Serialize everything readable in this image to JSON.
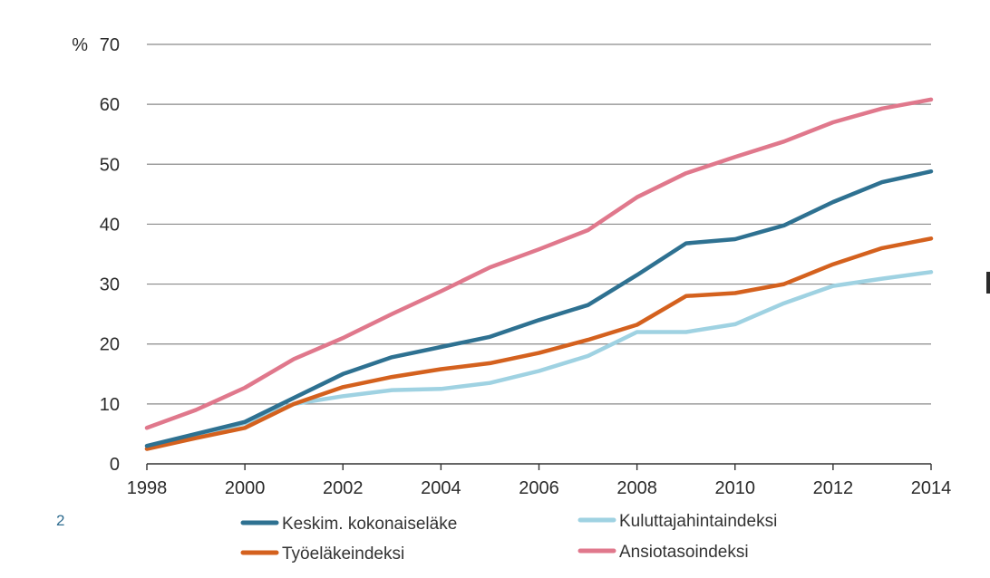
{
  "page_number": "2",
  "colors": {
    "Keskim. kokonaiseläke": "#2e7191",
    "Kuluttajahintaindeksi": "#9fd2e2",
    "Työeläkeindeksi": "#d4611e",
    "Ansiotasoindeksi": "#e0788c"
  },
  "chart_data": {
    "type": "line",
    "title": "",
    "xlabel": "",
    "ylabel": "",
    "y_unit": "%",
    "x": [
      1998,
      1999,
      2000,
      2001,
      2002,
      2003,
      2004,
      2005,
      2006,
      2007,
      2008,
      2009,
      2010,
      2011,
      2012,
      2013,
      2014
    ],
    "xticks": [
      "1998",
      "2000",
      "2002",
      "2004",
      "2006",
      "2008",
      "2010",
      "2012",
      "2014"
    ],
    "yticks": [
      "0",
      "10",
      "20",
      "30",
      "40",
      "50",
      "60",
      "70"
    ],
    "ylim": [
      0,
      70
    ],
    "grid": true,
    "legend_position": "bottom",
    "series": [
      {
        "name": "Keskim. kokonaiseläke",
        "values": [
          3.0,
          5.0,
          7.0,
          11.0,
          15.0,
          17.8,
          19.5,
          21.2,
          24.0,
          26.5,
          31.5,
          36.8,
          37.5,
          39.8,
          43.7,
          47.0,
          48.8
        ]
      },
      {
        "name": "Kuluttajahintaindeksi",
        "values": [
          2.5,
          4.5,
          6.8,
          10.0,
          11.3,
          12.3,
          12.5,
          13.5,
          15.5,
          18.0,
          22.0,
          22.0,
          23.3,
          26.8,
          29.7,
          30.9,
          32.0
        ]
      },
      {
        "name": "Työeläkeindeksi",
        "values": [
          2.5,
          4.3,
          6.0,
          10.0,
          12.8,
          14.5,
          15.8,
          16.8,
          18.5,
          20.7,
          23.2,
          28.0,
          28.5,
          30.0,
          33.3,
          36.0,
          37.6
        ]
      },
      {
        "name": "Ansiotasoindeksi",
        "values": [
          6.0,
          9.0,
          12.7,
          17.5,
          21.0,
          25.0,
          28.8,
          32.8,
          35.8,
          39.0,
          44.5,
          48.5,
          51.2,
          53.8,
          57.0,
          59.3,
          60.8
        ]
      }
    ],
    "legend": [
      {
        "name": "Keskim. kokonaiseläke"
      },
      {
        "name": "Kuluttajahintaindeksi"
      },
      {
        "name": "Työeläkeindeksi"
      },
      {
        "name": "Ansiotasoindeksi"
      }
    ]
  }
}
